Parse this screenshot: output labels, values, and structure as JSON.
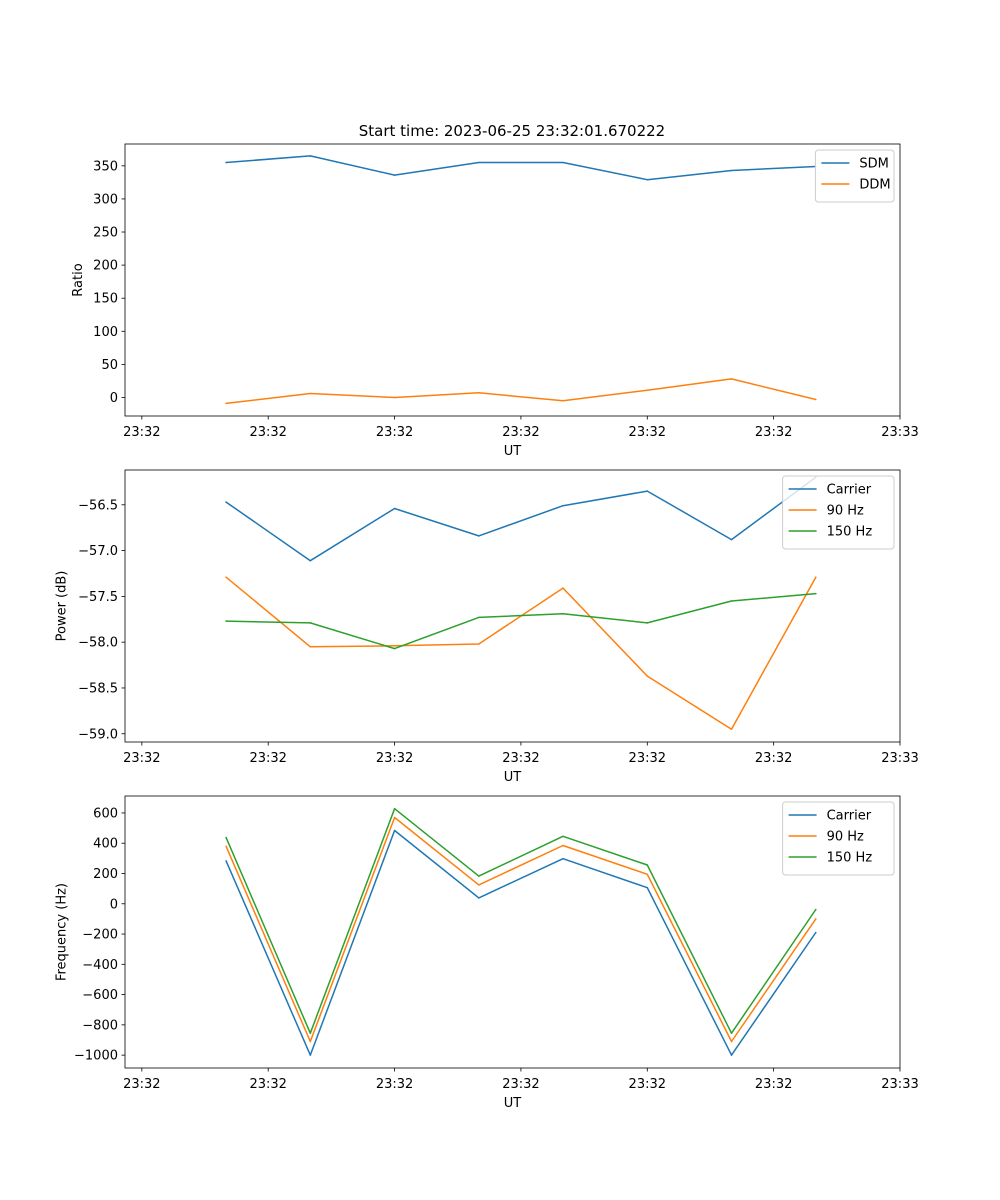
{
  "figure": {
    "title": "Start time: 2023-06-25 23:32:01.670222"
  },
  "chart_data": [
    {
      "type": "line",
      "xlabel": "UT",
      "ylabel": "Ratio",
      "x": [
        1,
        2,
        3,
        4,
        5,
        6,
        7,
        8
      ],
      "x_tick_positions": [
        0,
        1.5,
        3,
        4.5,
        6,
        7.5,
        9
      ],
      "x_tick_labels": [
        "23:32",
        "23:32",
        "23:32",
        "23:32",
        "23:32",
        "23:32",
        "23:33"
      ],
      "xlim": [
        -0.2,
        9
      ],
      "ylim": [
        -28,
        383
      ],
      "y_ticks": [
        0,
        50,
        100,
        150,
        200,
        250,
        300,
        350
      ],
      "y_tick_labels": [
        "0",
        "50",
        "100",
        "150",
        "200",
        "250",
        "300",
        "350"
      ],
      "legend_position": "top-right",
      "grid": false,
      "series": [
        {
          "name": "SDM",
          "color": "#1f77b4",
          "values": [
            355,
            365,
            336,
            355,
            355,
            329,
            343,
            349
          ]
        },
        {
          "name": "DDM",
          "color": "#ff7f0e",
          "values": [
            -9,
            6,
            0,
            7,
            -5,
            11,
            28,
            -3
          ]
        }
      ]
    },
    {
      "type": "line",
      "xlabel": "UT",
      "ylabel": "Power (dB)",
      "x": [
        1,
        2,
        3,
        4,
        5,
        6,
        7,
        8
      ],
      "x_tick_positions": [
        0,
        1.5,
        3,
        4.5,
        6,
        7.5,
        9
      ],
      "x_tick_labels": [
        "23:32",
        "23:32",
        "23:32",
        "23:32",
        "23:32",
        "23:32",
        "23:33"
      ],
      "xlim": [
        -0.2,
        9
      ],
      "ylim": [
        -59.09,
        -56.12
      ],
      "y_ticks": [
        -59.0,
        -58.5,
        -58.0,
        -57.5,
        -57.0,
        -56.5
      ],
      "y_tick_labels": [
        "−59.0",
        "−58.5",
        "−58.0",
        "−57.5",
        "−57.0",
        "−56.5"
      ],
      "legend_position": "top-right",
      "grid": false,
      "series": [
        {
          "name": "Carrier",
          "color": "#1f77b4",
          "values": [
            -56.47,
            -57.11,
            -56.54,
            -56.84,
            -56.51,
            -56.35,
            -56.88,
            -56.2
          ]
        },
        {
          "name": "90 Hz",
          "color": "#ff7f0e",
          "values": [
            -57.29,
            -58.05,
            -58.04,
            -58.02,
            -57.41,
            -58.37,
            -58.95,
            -57.29
          ]
        },
        {
          "name": "150 Hz",
          "color": "#2ca02c",
          "values": [
            -57.77,
            -57.79,
            -58.07,
            -57.73,
            -57.69,
            -57.79,
            -57.55,
            -57.47
          ]
        }
      ]
    },
    {
      "type": "line",
      "xlabel": "UT",
      "ylabel": "Frequency (Hz)",
      "x": [
        1,
        2,
        3,
        4,
        5,
        6,
        7,
        8
      ],
      "x_tick_positions": [
        0,
        1.5,
        3,
        4.5,
        6,
        7.5,
        9
      ],
      "x_tick_labels": [
        "23:32",
        "23:32",
        "23:32",
        "23:32",
        "23:32",
        "23:32",
        "23:33"
      ],
      "xlim": [
        -0.2,
        9
      ],
      "ylim": [
        -1085,
        712
      ],
      "y_ticks": [
        -1000,
        -800,
        -600,
        -400,
        -200,
        0,
        200,
        400,
        600
      ],
      "y_tick_labels": [
        "−1000",
        "−800",
        "−600",
        "−400",
        "−200",
        "0",
        "200",
        "400",
        "600"
      ],
      "legend_position": "top-right",
      "grid": false,
      "series": [
        {
          "name": "Carrier",
          "color": "#1f77b4",
          "values": [
            283,
            -1000,
            484,
            39,
            298,
            106,
            -1000,
            -190
          ]
        },
        {
          "name": "90 Hz",
          "color": "#ff7f0e",
          "values": [
            380,
            -910,
            570,
            125,
            385,
            195,
            -910,
            -100
          ]
        },
        {
          "name": "150 Hz",
          "color": "#2ca02c",
          "values": [
            437,
            -855,
            628,
            183,
            446,
            256,
            -855,
            -38
          ]
        }
      ]
    }
  ]
}
